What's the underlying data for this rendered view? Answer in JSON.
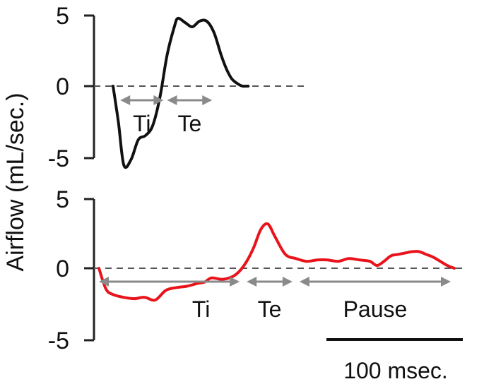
{
  "chart_data": {
    "ylabel": "Airflow (mL/sec.)",
    "scale_bar_label": "100 msec.",
    "panels": [
      {
        "type": "line",
        "color": "#111111",
        "ylim": [
          -5,
          5
        ],
        "yticks": [
          "5",
          "0",
          "-5"
        ],
        "x": [
          0,
          3,
          6,
          10,
          14,
          18,
          22,
          26,
          30,
          34,
          36,
          40,
          44,
          48,
          52,
          56,
          60,
          63,
          66,
          70,
          72,
          75
        ],
        "y": [
          0,
          -2.6,
          -5.6,
          -5.2,
          -3.8,
          -3.5,
          -2.8,
          -0.8,
          2.2,
          4.2,
          4.8,
          4.5,
          4.2,
          4.6,
          4.6,
          3.8,
          2.2,
          1.2,
          0.5,
          0.1,
          0,
          0
        ],
        "annotations": [
          {
            "label": "Ti",
            "x_start": 4,
            "x_end": 28
          },
          {
            "label": "Te",
            "x_start": 30,
            "x_end": 55
          }
        ]
      },
      {
        "type": "line",
        "color": "#e8131b",
        "ylim": [
          -5,
          5
        ],
        "yticks": [
          "5",
          "0",
          "-5"
        ],
        "x": [
          0,
          4,
          8,
          14,
          20,
          26,
          32,
          38,
          44,
          50,
          56,
          60,
          64,
          70,
          76,
          80,
          84,
          88,
          92,
          96,
          100,
          106,
          112,
          118,
          124,
          130,
          136,
          142,
          148,
          154,
          158,
          162,
          166,
          170,
          174,
          178,
          182,
          186,
          190,
          194,
          198,
          202
        ],
        "y": [
          0,
          -1.5,
          -1.9,
          -2.1,
          -2.2,
          -2.1,
          -2.3,
          -1.6,
          -1.4,
          -1.3,
          -1.1,
          -1.0,
          -0.7,
          -0.8,
          -0.6,
          -0.2,
          0.5,
          1.5,
          2.8,
          3.2,
          2.3,
          1.0,
          0.7,
          0.5,
          0.6,
          0.6,
          0.5,
          0.7,
          0.6,
          0.5,
          0.2,
          0.5,
          0.9,
          1.0,
          1.1,
          1.2,
          1.2,
          1.0,
          0.8,
          0.5,
          0.2,
          0
        ],
        "annotations": [
          {
            "label": "Ti",
            "x_start": 0,
            "x_end": 80
          },
          {
            "label": "Te",
            "x_start": 84,
            "x_end": 110
          },
          {
            "label": "Pause",
            "x_start": 114,
            "x_end": 200
          }
        ]
      }
    ]
  }
}
